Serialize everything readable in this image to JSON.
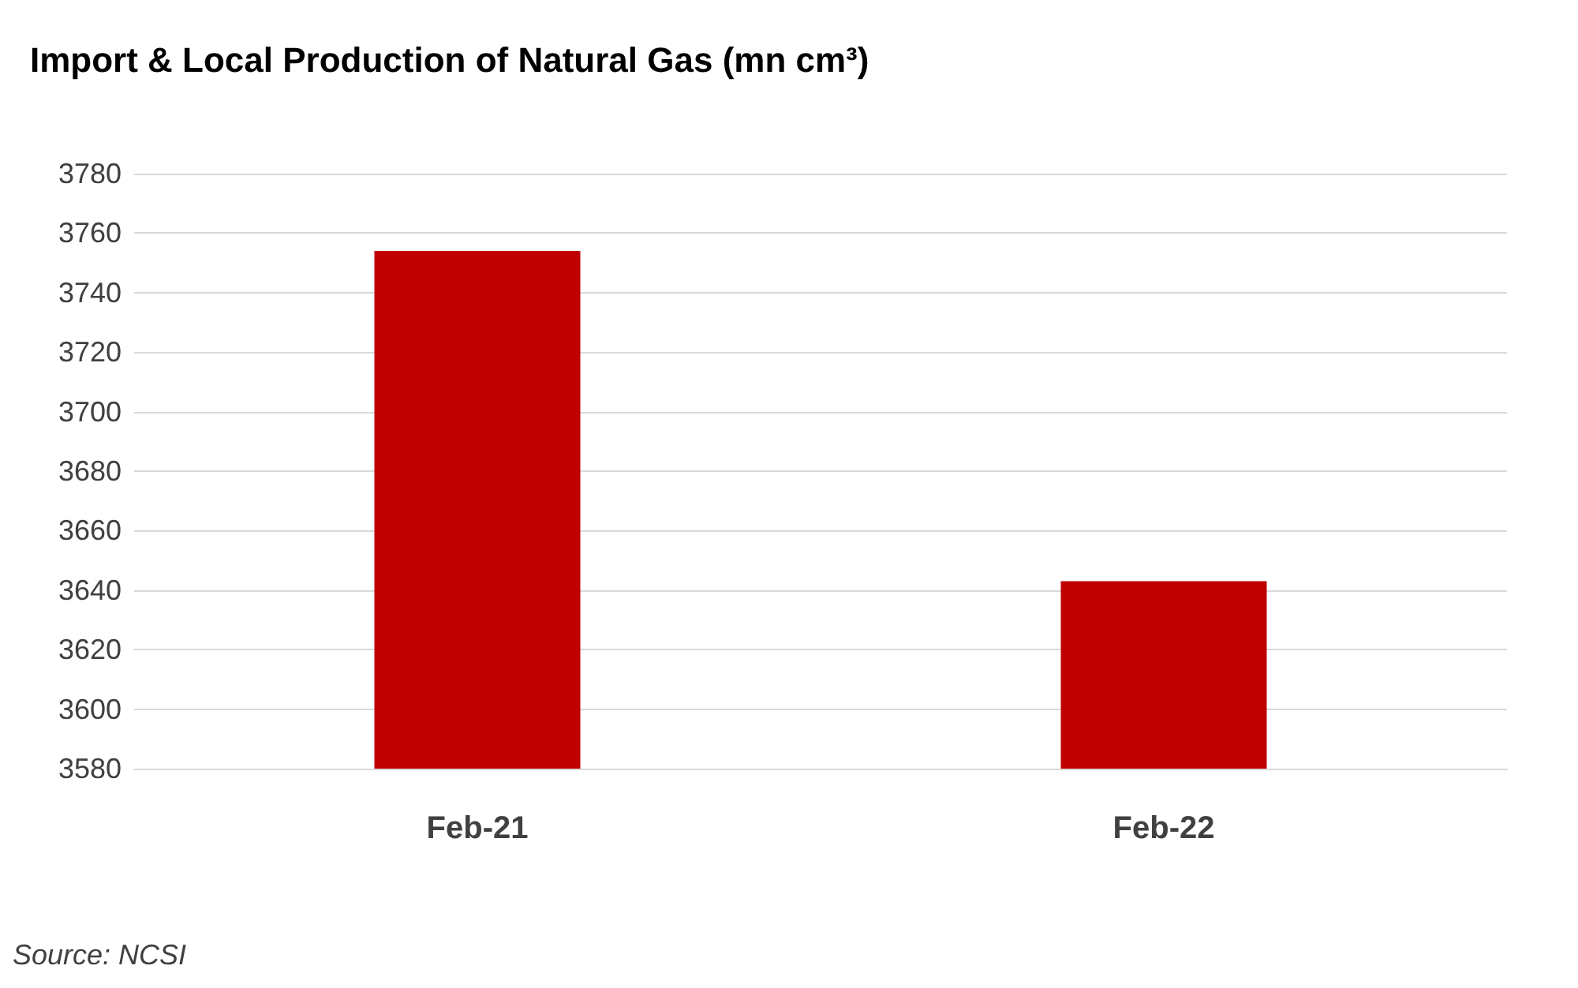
{
  "chart_data": {
    "type": "bar",
    "title": "Import & Local Production of Natural Gas (mn cm³)",
    "categories": [
      "Feb-21",
      "Feb-22"
    ],
    "series": [
      {
        "color": "#c00000",
        "values": [
          3754,
          3643
        ]
      }
    ],
    "ylim": [
      3580,
      3780
    ],
    "yticks": [
      3580,
      3600,
      3620,
      3640,
      3660,
      3680,
      3700,
      3720,
      3740,
      3760,
      3780
    ],
    "grid": "y",
    "annotations": [
      "Source: NCSI"
    ]
  }
}
